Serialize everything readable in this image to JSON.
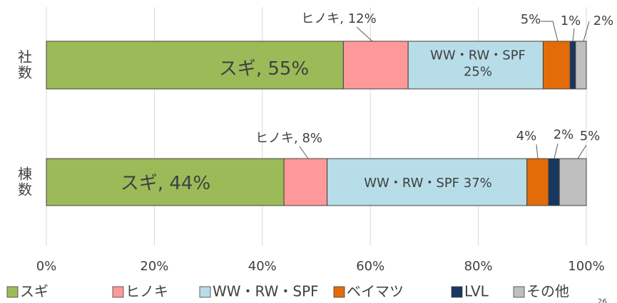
{
  "chart_data": {
    "type": "bar",
    "orientation": "horizontal",
    "stacked": true,
    "categories": [
      "社数",
      "棟数"
    ],
    "series": [
      {
        "name": "スギ",
        "color": "#9bbb59",
        "values": [
          55,
          44
        ],
        "value_labels": [
          "スギ, 55%",
          "スギ, 44%"
        ]
      },
      {
        "name": "ヒノキ",
        "color": "#ff9999",
        "values": [
          12,
          8
        ],
        "value_labels": [
          "ヒノキ, 12%",
          "ヒノキ, 8%"
        ]
      },
      {
        "name": "WW・RW・SPF",
        "color": "#b7dde8",
        "values": [
          25,
          37
        ],
        "value_labels": [
          "WW・RW・SPF\n25%",
          "WW・RW・SPF 37%"
        ]
      },
      {
        "name": "ベイマツ",
        "color": "#e36c09",
        "values": [
          5,
          4
        ],
        "value_labels": [
          "5%",
          "4%"
        ]
      },
      {
        "name": "LVL",
        "color": "#17375e",
        "values": [
          1,
          2
        ],
        "value_labels": [
          "1%",
          "2%"
        ]
      },
      {
        "name": "その他",
        "color": "#bfbfbf",
        "values": [
          2,
          5
        ],
        "value_labels": [
          "2%",
          "5%"
        ]
      }
    ],
    "xlim": [
      0,
      100
    ],
    "xticks": [
      {
        "value": 0,
        "label": "0%"
      },
      {
        "value": 20,
        "label": "20%"
      },
      {
        "value": 40,
        "label": "40%"
      },
      {
        "value": 60,
        "label": "60%"
      },
      {
        "value": 80,
        "label": "80%"
      },
      {
        "value": 100,
        "label": "100%"
      }
    ],
    "grid": true,
    "legend": "bottom",
    "page_number": "26"
  }
}
